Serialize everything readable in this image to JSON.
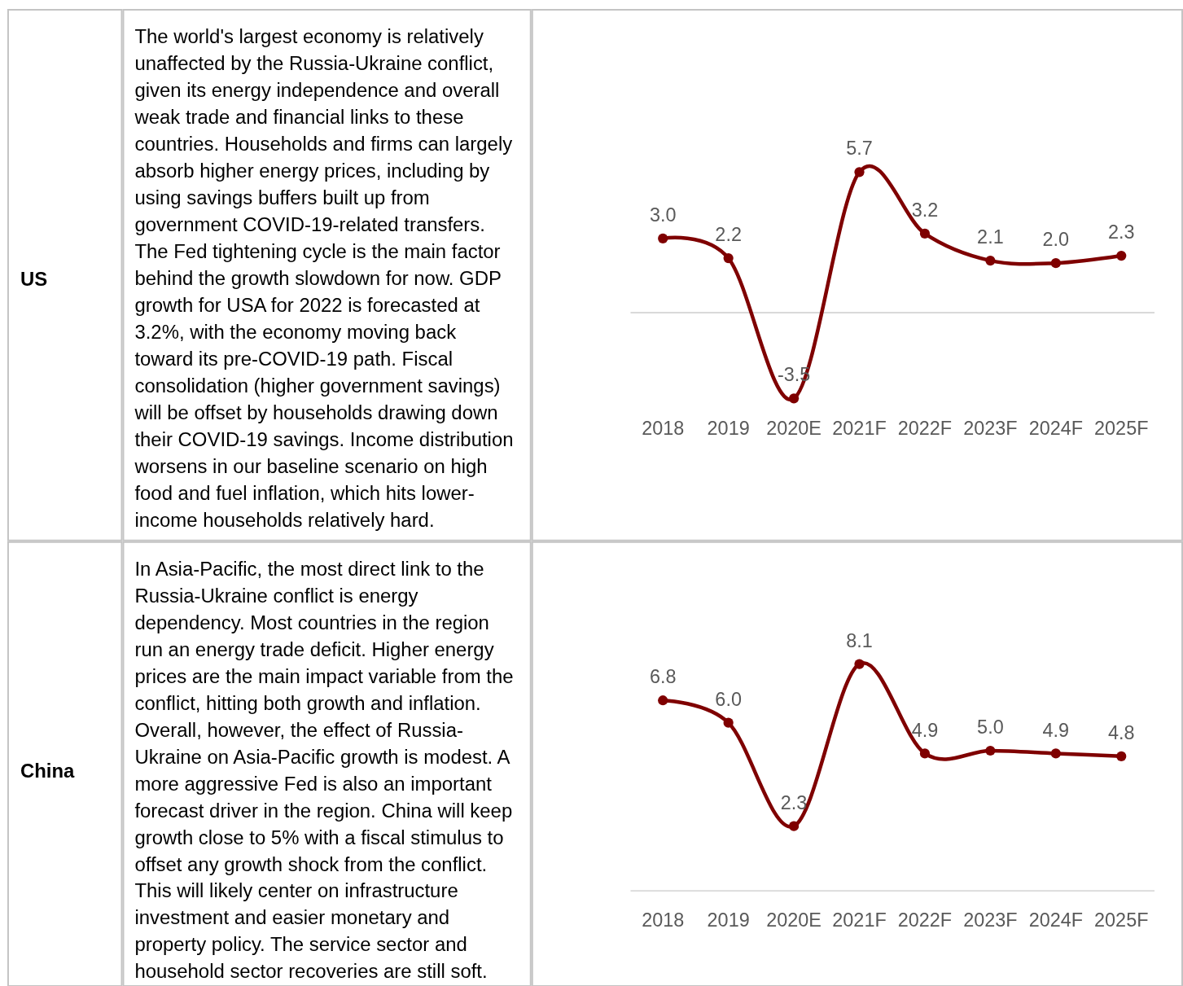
{
  "chart_data": [
    {
      "type": "other",
      "title": "US"
    },
    {
      "type": "other",
      "annotations": [
        "The world's largest economy is relatively unaffected by the Russia-Ukraine conflict, given its energy independence and overall weak trade and financial links to these countries. Households and firms can largely absorb higher energy prices, including by using savings buffers built up from government COVID-19-related transfers. The Fed tightening cycle is the main factor behind the growth slowdown for now. GDP growth for USA for 2022 is forecasted at 3.2%, with the economy moving back toward its pre-COVID-19 path. Fiscal consolidation (higher government savings) will be offset by households drawing down their COVID-19 savings. Income distribution worsens in our baseline scenario on high food and fuel inflation, which hits lower-income households relatively hard."
      ]
    },
    {
      "type": "line",
      "categories": [
        "2018",
        "2019",
        "2020E",
        "2021F",
        "2022F",
        "2023F",
        "2024F",
        "2025F"
      ],
      "series": [
        {
          "color": "#7f0000",
          "values": [
            3.0,
            2.2,
            -3.5,
            5.7,
            3.2,
            2.1,
            2.0,
            2.3
          ],
          "value_labels": [
            "3.0",
            "2.2",
            "-3.5",
            "5.7",
            "3.2",
            "2.1",
            "2.0",
            "2.3"
          ]
        }
      ],
      "marker": "circle",
      "line_style": "solid",
      "tick_labels": "x"
    },
    {
      "type": "other",
      "title": "China"
    },
    {
      "type": "other",
      "annotations": [
        "In Asia-Pacific, the most direct link to the Russia-Ukraine conflict is energy dependency. Most countries in the region run an energy trade deficit. Higher energy prices are the main impact variable from the conflict, hitting both growth and inflation. Overall, however, the effect of Russia-Ukraine on Asia-Pacific growth is modest. A more aggressive Fed is also an important forecast driver in the region. China will keep growth close to 5% with a fiscal stimulus to offset any growth shock from the conflict. This will likely center on infrastructure investment and easier monetary and property policy. The service sector and household sector recoveries are still soft."
      ]
    },
    {
      "type": "line",
      "categories": [
        "2018",
        "2019",
        "2020E",
        "2021F",
        "2022F",
        "2023F",
        "2024F",
        "2025F"
      ],
      "series": [
        {
          "color": "#7f0000",
          "values": [
            6.8,
            6.0,
            2.3,
            8.1,
            4.9,
            5.0,
            4.9,
            4.8
          ],
          "value_labels": [
            "6.8",
            "6.0",
            "2.3",
            "8.1",
            "4.9",
            "5.0",
            "4.9",
            "4.8"
          ]
        }
      ],
      "marker": "circle",
      "line_style": "solid",
      "tick_labels": "x"
    }
  ]
}
